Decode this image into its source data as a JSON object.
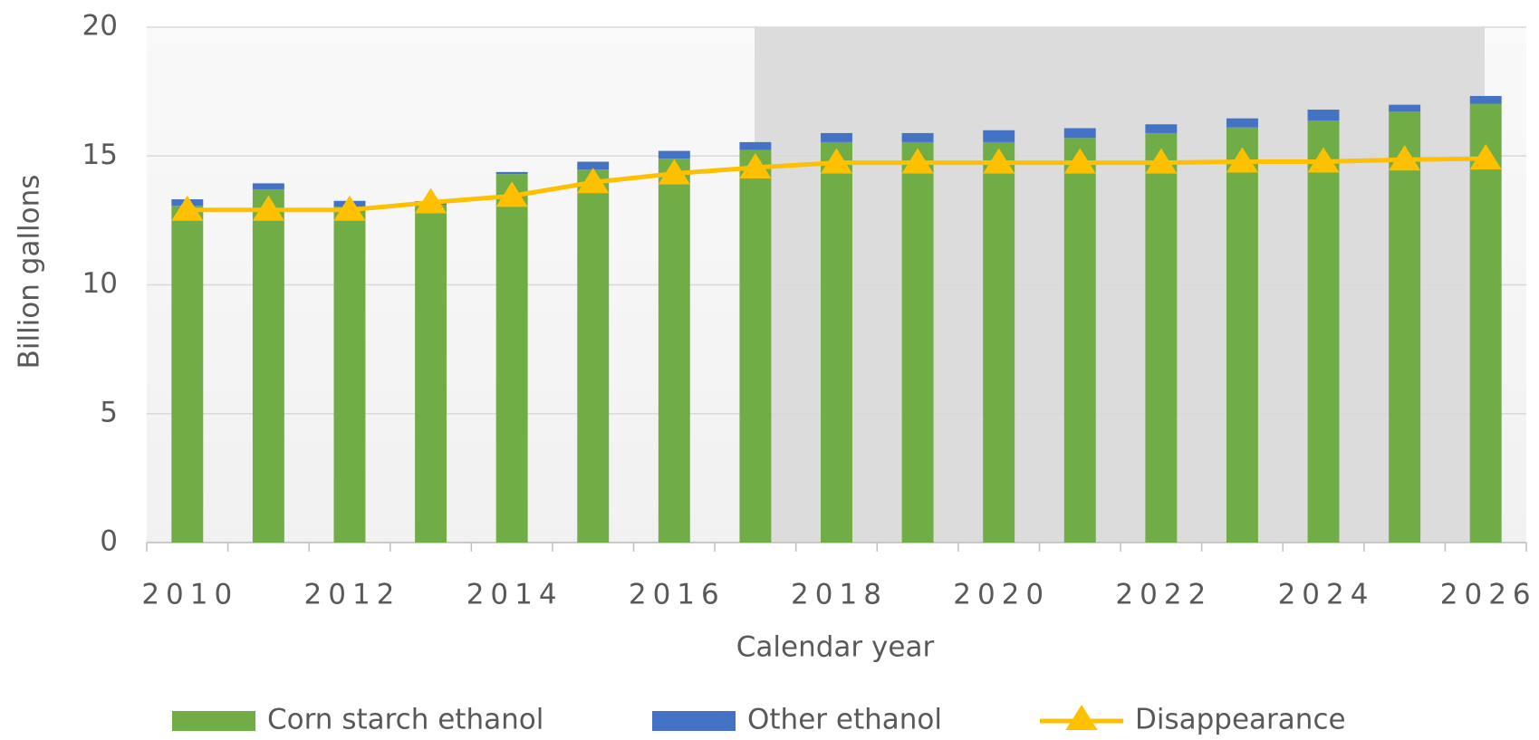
{
  "chart_data": {
    "type": "bar_line",
    "categories": [
      "2010",
      null,
      "2012",
      null,
      "2014",
      null,
      "2016",
      null,
      "2018",
      null,
      "2020",
      null,
      "2022",
      null,
      "2024",
      null,
      "2026"
    ],
    "series": [
      {
        "name": "Corn starch ethanol",
        "type": "bar",
        "color": "#70ad47",
        "values": [
          13.07,
          13.71,
          13.03,
          13.1,
          14.3,
          14.48,
          14.9,
          15.24,
          15.54,
          15.54,
          15.54,
          15.7,
          15.89,
          16.11,
          16.38,
          16.72,
          17.03
        ]
      },
      {
        "name": "Other ethanol",
        "type": "bar",
        "color": "#4472c4",
        "values": [
          0.25,
          0.23,
          0.23,
          0.15,
          0.08,
          0.3,
          0.3,
          0.3,
          0.35,
          0.35,
          0.46,
          0.38,
          0.34,
          0.35,
          0.42,
          0.27,
          0.3
        ]
      },
      {
        "name": "Disappearance",
        "type": "line",
        "color": "#ffc000",
        "values": [
          12.91,
          12.91,
          12.91,
          13.2,
          13.45,
          13.98,
          14.32,
          14.55,
          14.74,
          14.74,
          14.74,
          14.74,
          14.74,
          14.78,
          14.78,
          14.86,
          14.9
        ]
      }
    ],
    "stacked": true,
    "x_label": "Calendar year",
    "y_label": "Billion gallons",
    "ylim": [
      0,
      20
    ],
    "yticks": [
      0,
      5,
      10,
      15,
      20
    ],
    "grid": true,
    "legend": "bottom"
  }
}
